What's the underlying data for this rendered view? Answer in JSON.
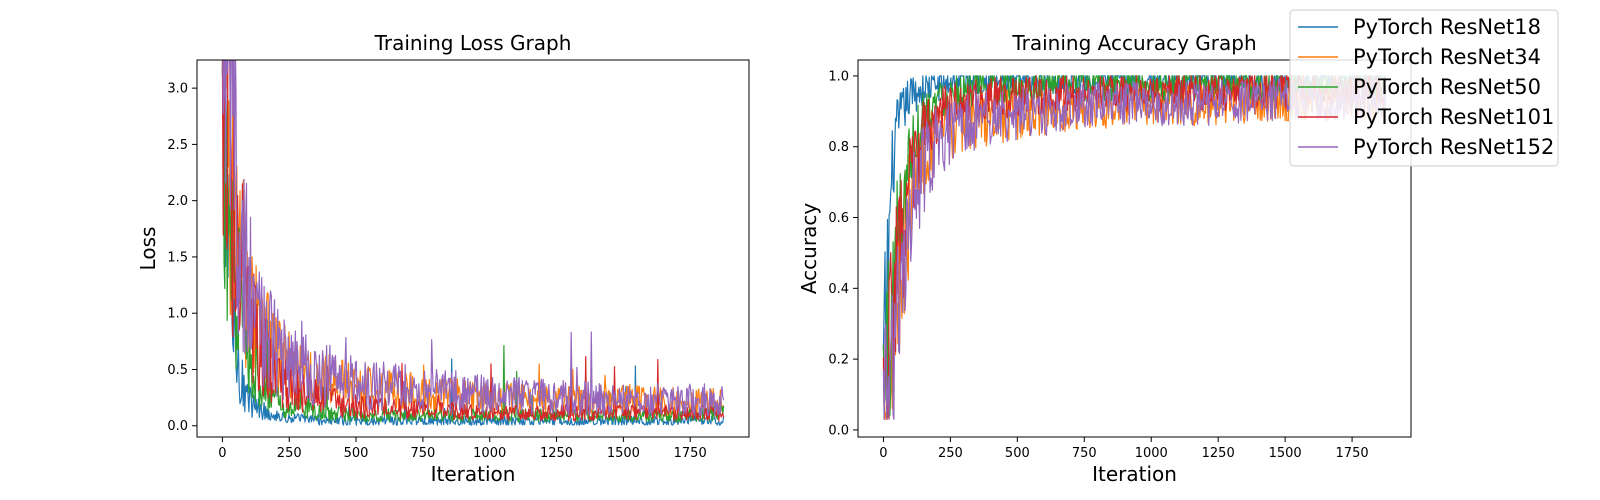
{
  "colors": {
    "ResNet18": "#1f77b4",
    "ResNet34": "#ff7f0e",
    "ResNet50": "#2ca02c",
    "ResNet101": "#d62728",
    "ResNet152": "#9467bd"
  },
  "legend": {
    "placement": "top-right (figure)",
    "entries": [
      "PyTorch ResNet18",
      "PyTorch ResNet34",
      "PyTorch ResNet50",
      "PyTorch ResNet101",
      "PyTorch ResNet152"
    ]
  },
  "chart_data": [
    {
      "type": "line",
      "title": "Training Loss Graph",
      "xlabel": "Iteration",
      "ylabel": "Loss",
      "xlim": [
        -95,
        1970
      ],
      "ylim": [
        -0.1,
        3.25
      ],
      "xticks": [
        0,
        250,
        500,
        750,
        1000,
        1250,
        1500,
        1750
      ],
      "yticks": [
        0.0,
        0.5,
        1.0,
        1.5,
        2.0,
        2.5,
        3.0
      ],
      "xtick_labels": [
        "0",
        "250",
        "500",
        "750",
        "1000",
        "1250",
        "1500",
        "1750"
      ],
      "ytick_labels": [
        "0.0",
        "0.5",
        "1.0",
        "1.5",
        "2.0",
        "2.5",
        "3.0"
      ],
      "grid": false,
      "series": [
        {
          "name": "PyTorch ResNet18",
          "x": [
            0,
            10,
            20,
            30,
            40,
            50,
            60,
            70,
            80,
            100,
            120,
            150,
            200,
            250,
            300,
            400,
            500,
            750,
            1000,
            1250,
            1500,
            1750,
            1875
          ],
          "y": [
            2.4,
            2.0,
            1.5,
            1.1,
            0.8,
            0.6,
            0.5,
            0.4,
            0.3,
            0.2,
            0.15,
            0.12,
            0.08,
            0.06,
            0.05,
            0.04,
            0.03,
            0.03,
            0.03,
            0.03,
            0.03,
            0.03,
            0.03
          ]
        },
        {
          "name": "PyTorch ResNet34",
          "x": [
            0,
            25,
            50,
            100,
            150,
            200,
            250,
            300,
            400,
            500,
            750,
            1000,
            1250,
            1500,
            1750,
            1875
          ],
          "y": [
            2.6,
            2.2,
            1.6,
            1.0,
            0.7,
            0.55,
            0.45,
            0.4,
            0.35,
            0.3,
            0.25,
            0.22,
            0.2,
            0.2,
            0.18,
            0.18
          ]
        },
        {
          "name": "PyTorch ResNet50",
          "x": [
            0,
            25,
            50,
            100,
            150,
            200,
            250,
            300,
            400,
            500,
            750,
            1000,
            1250,
            1500,
            1750,
            1875
          ],
          "y": [
            2.3,
            1.8,
            1.2,
            0.6,
            0.3,
            0.2,
            0.15,
            0.12,
            0.1,
            0.08,
            0.08,
            0.08,
            0.08,
            0.08,
            0.08,
            0.1
          ]
        },
        {
          "name": "PyTorch ResNet101",
          "x": [
            0,
            25,
            50,
            100,
            150,
            200,
            250,
            300,
            400,
            500,
            750,
            1000,
            1250,
            1500,
            1750,
            1875
          ],
          "y": [
            2.4,
            2.0,
            1.5,
            0.9,
            0.55,
            0.4,
            0.3,
            0.25,
            0.2,
            0.15,
            0.12,
            0.1,
            0.1,
            0.1,
            0.1,
            0.1
          ]
        },
        {
          "name": "PyTorch ResNet152",
          "x": [
            0,
            25,
            50,
            100,
            150,
            200,
            250,
            300,
            400,
            500,
            750,
            1000,
            1250,
            1500,
            1750,
            1875
          ],
          "y": [
            2.7,
            2.3,
            1.9,
            1.2,
            0.8,
            0.6,
            0.5,
            0.45,
            0.38,
            0.33,
            0.28,
            0.25,
            0.22,
            0.2,
            0.2,
            0.2
          ]
        }
      ]
    },
    {
      "type": "line",
      "title": "Training Accuracy Graph",
      "xlabel": "Iteration",
      "ylabel": "Accuracy",
      "xlim": [
        -95,
        1970
      ],
      "ylim": [
        -0.02,
        1.045
      ],
      "xticks": [
        0,
        250,
        500,
        750,
        1000,
        1250,
        1500,
        1750
      ],
      "yticks": [
        0.0,
        0.2,
        0.4,
        0.6,
        0.8,
        1.0
      ],
      "xtick_labels": [
        "0",
        "250",
        "500",
        "750",
        "1000",
        "1250",
        "1500",
        "1750"
      ],
      "ytick_labels": [
        "0.0",
        "0.2",
        "0.4",
        "0.6",
        "0.8",
        "1.0"
      ],
      "grid": false,
      "series": [
        {
          "name": "PyTorch ResNet18",
          "x": [
            0,
            10,
            20,
            30,
            40,
            50,
            60,
            80,
            100,
            150,
            200,
            250,
            500,
            750,
            1000,
            1250,
            1500,
            1750,
            1875
          ],
          "y": [
            0.15,
            0.35,
            0.55,
            0.7,
            0.8,
            0.85,
            0.88,
            0.92,
            0.95,
            0.97,
            0.98,
            0.99,
            0.99,
            0.99,
            0.99,
            0.99,
            0.99,
            0.99,
            0.99
          ]
        },
        {
          "name": "PyTorch ResNet34",
          "x": [
            0,
            25,
            50,
            100,
            150,
            200,
            250,
            300,
            400,
            500,
            750,
            1000,
            1250,
            1500,
            1750,
            1875
          ],
          "y": [
            0.1,
            0.2,
            0.4,
            0.65,
            0.78,
            0.83,
            0.86,
            0.88,
            0.89,
            0.9,
            0.92,
            0.93,
            0.93,
            0.94,
            0.94,
            0.94
          ]
        },
        {
          "name": "PyTorch ResNet50",
          "x": [
            0,
            25,
            50,
            100,
            150,
            200,
            250,
            300,
            400,
            500,
            750,
            1000,
            1250,
            1500,
            1750,
            1875
          ],
          "y": [
            0.15,
            0.3,
            0.55,
            0.8,
            0.9,
            0.94,
            0.96,
            0.97,
            0.97,
            0.98,
            0.98,
            0.98,
            0.98,
            0.98,
            0.98,
            0.98
          ]
        },
        {
          "name": "PyTorch ResNet101",
          "x": [
            0,
            25,
            50,
            100,
            150,
            200,
            250,
            300,
            400,
            500,
            750,
            1000,
            1250,
            1500,
            1750,
            1875
          ],
          "y": [
            0.1,
            0.25,
            0.45,
            0.7,
            0.84,
            0.89,
            0.92,
            0.93,
            0.94,
            0.95,
            0.96,
            0.96,
            0.96,
            0.96,
            0.96,
            0.96
          ]
        },
        {
          "name": "PyTorch ResNet152",
          "x": [
            0,
            25,
            50,
            75,
            100,
            150,
            200,
            250,
            300,
            400,
            500,
            750,
            1000,
            1250,
            1500,
            1750,
            1875
          ],
          "y": [
            0.05,
            0.1,
            0.25,
            0.45,
            0.6,
            0.75,
            0.82,
            0.85,
            0.87,
            0.89,
            0.9,
            0.92,
            0.93,
            0.93,
            0.94,
            0.94,
            0.94
          ]
        }
      ]
    }
  ]
}
